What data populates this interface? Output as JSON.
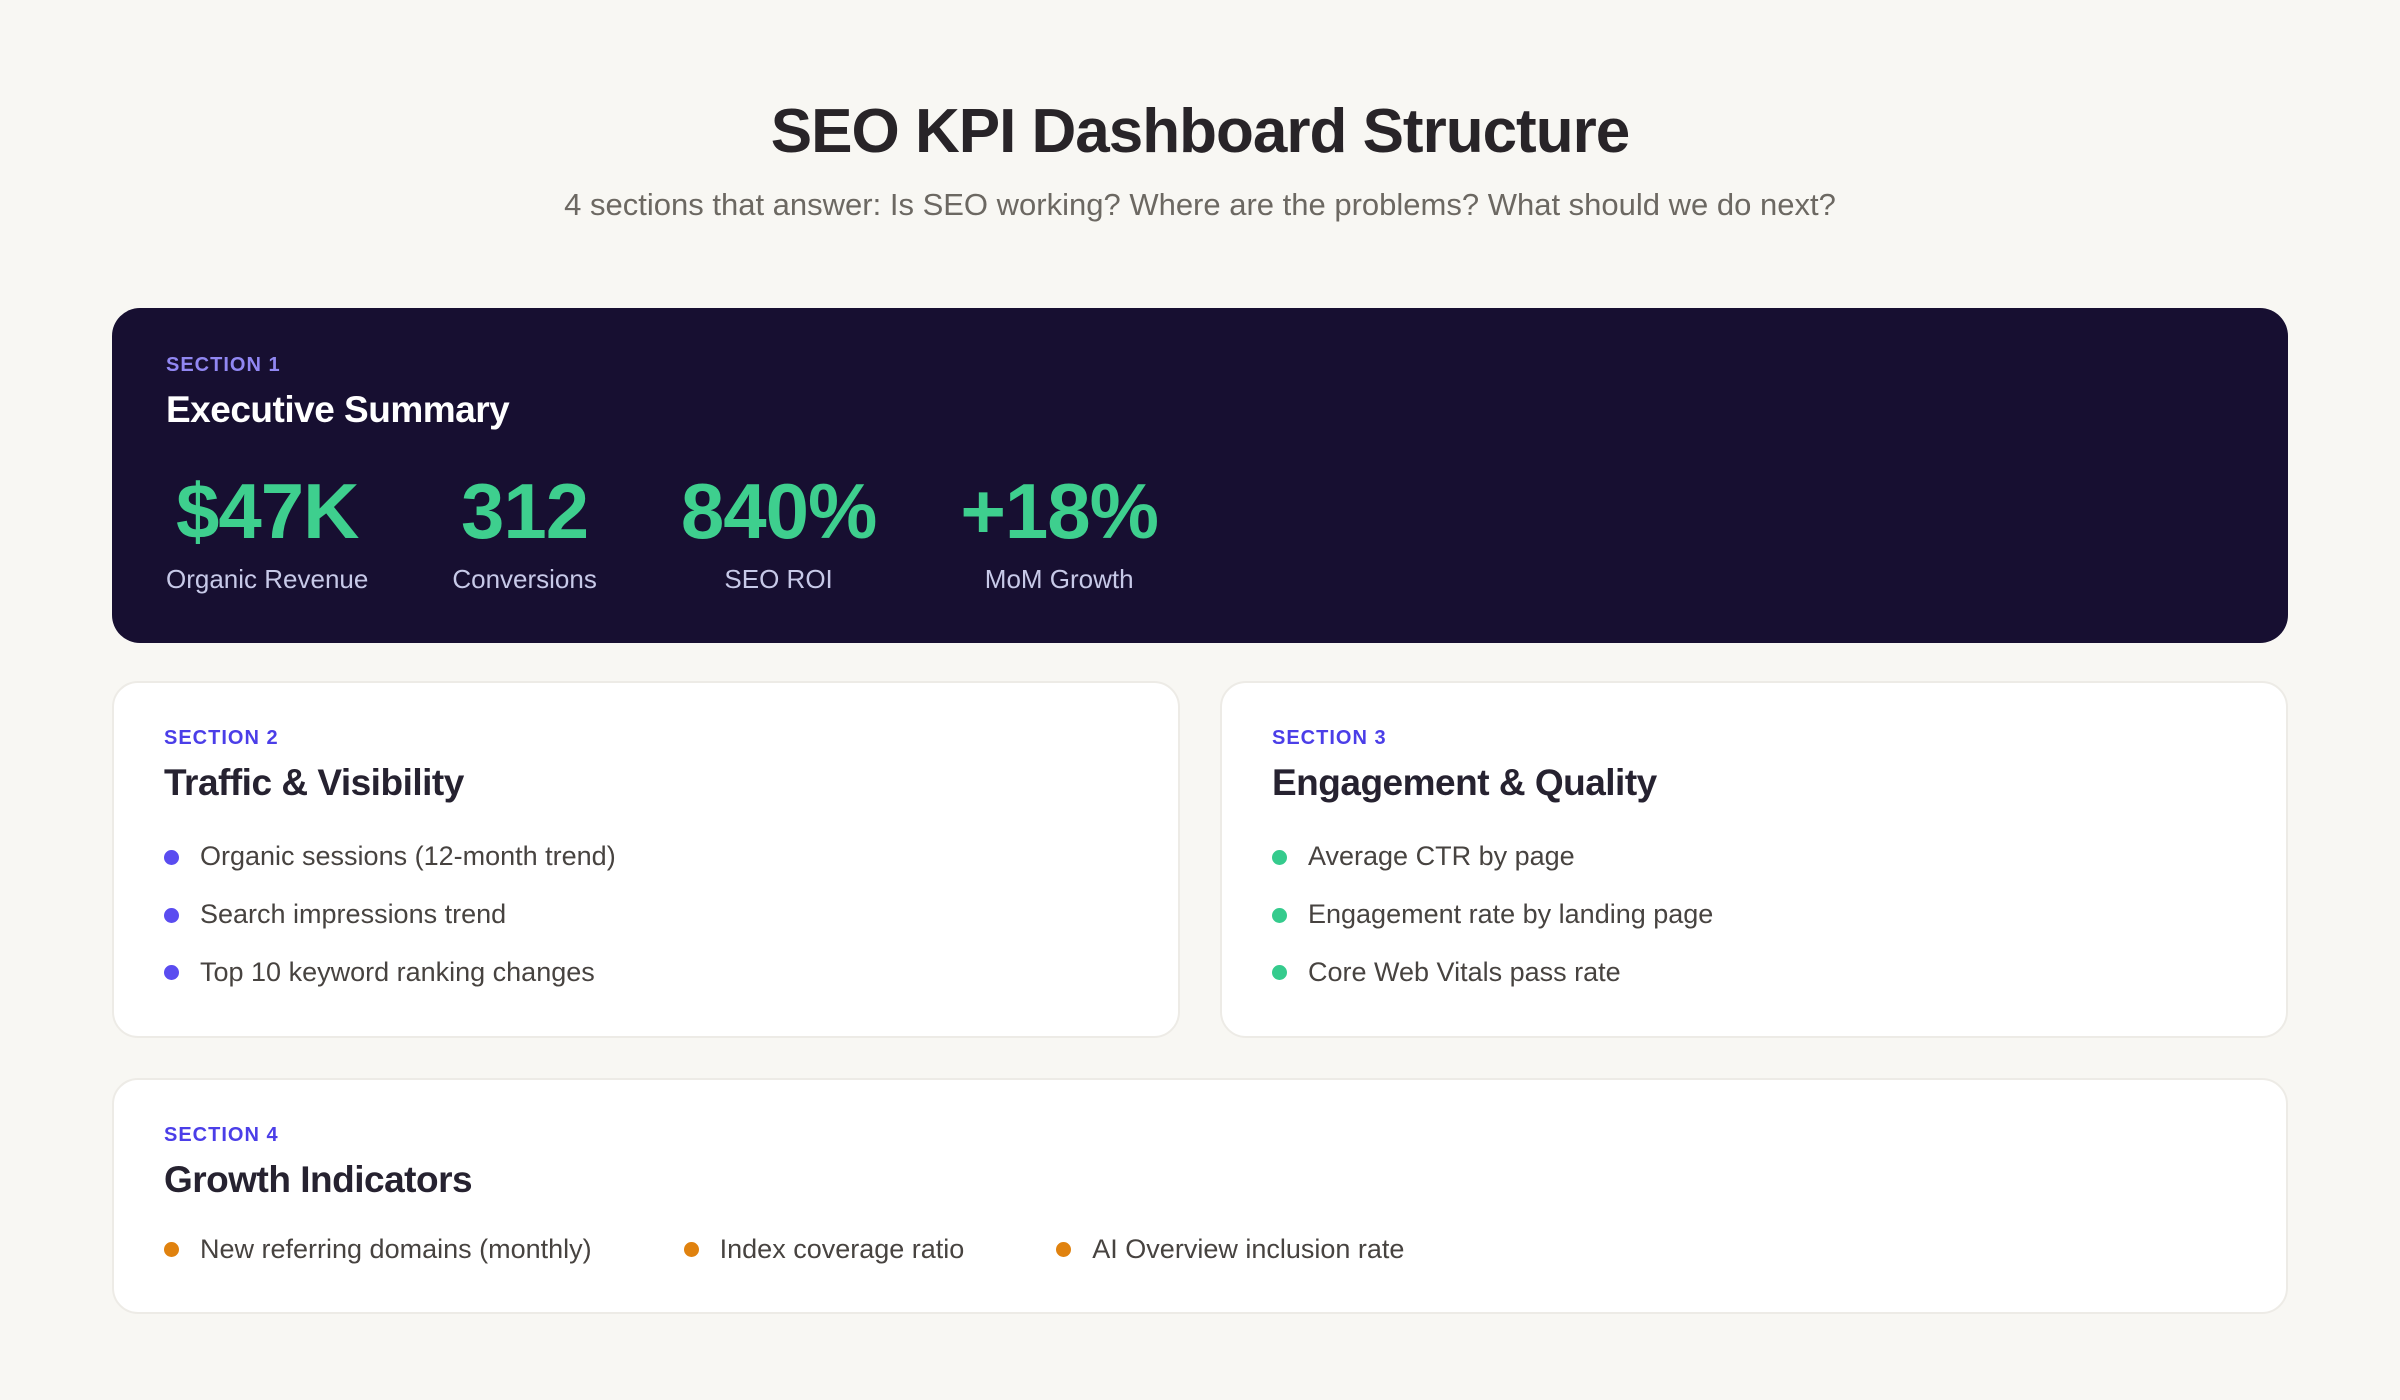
{
  "header": {
    "title": "SEO KPI Dashboard Structure",
    "subtitle": "4 sections that answer: Is SEO working? Where are the problems? What should we do next?"
  },
  "sections": {
    "s1": {
      "label": "SECTION 1",
      "title": "Executive Summary",
      "metrics": [
        {
          "value": "$47K",
          "label": "Organic Revenue"
        },
        {
          "value": "312",
          "label": "Conversions"
        },
        {
          "value": "840%",
          "label": "SEO ROI"
        },
        {
          "value": "+18%",
          "label": "MoM Growth"
        }
      ]
    },
    "s2": {
      "label": "SECTION 2",
      "title": "Traffic & Visibility",
      "bullet_color": "#5a4cf0",
      "items": [
        "Organic sessions (12-month trend)",
        "Search impressions trend",
        "Top 10 keyword ranking changes"
      ]
    },
    "s3": {
      "label": "SECTION 3",
      "title": "Engagement & Quality",
      "bullet_color": "#35cb8d",
      "items": [
        "Average CTR by page",
        "Engagement rate by landing page",
        "Core Web Vitals pass rate"
      ]
    },
    "s4": {
      "label": "SECTION 4",
      "title": "Growth Indicators",
      "bullet_color": "#e0820f",
      "items": [
        "New referring domains (monthly)",
        "Index coverage ratio",
        "AI Overview inclusion rate"
      ]
    }
  },
  "colors": {
    "page_background": "#f8f7f3",
    "dark_card_background": "#170f31",
    "section_label_indigo": "#4b3ee8",
    "section_label_lavender": "#9187f2",
    "metric_green": "#3ecf8e",
    "metric_label_lavender": "#c7c9e8",
    "bullet_purple": "#5a4cf0",
    "bullet_green": "#35cb8d",
    "bullet_orange": "#e0820f"
  }
}
